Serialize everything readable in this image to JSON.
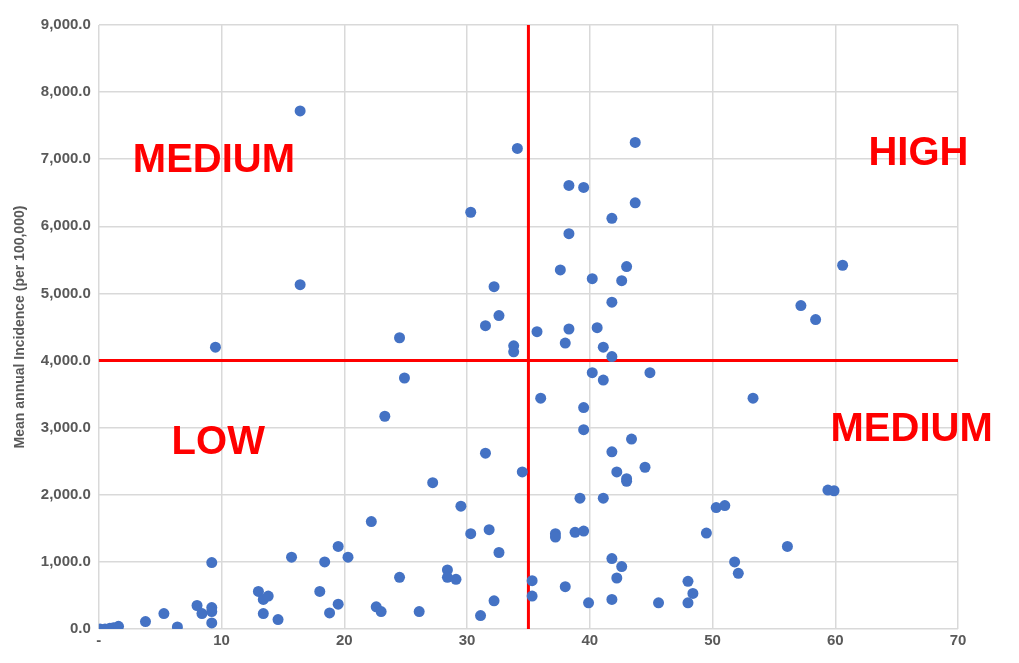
{
  "chart_data": {
    "type": "scatter",
    "ylabel": "Mean annual Incidence (per 100,000)",
    "xlim": [
      0,
      70
    ],
    "xticks": [
      {
        "value": 0,
        "label": "-"
      },
      10,
      20,
      30,
      40,
      50,
      60,
      70
    ],
    "ylim": [
      0,
      9000
    ],
    "yticks": [
      {
        "value": 0,
        "label": "0.0"
      },
      {
        "value": 1000,
        "label": "1,000.0"
      },
      {
        "value": 2000,
        "label": "2,000.0"
      },
      {
        "value": 3000,
        "label": "3,000.0"
      },
      {
        "value": 4000,
        "label": "4,000.0"
      },
      {
        "value": 5000,
        "label": "5,000.0"
      },
      {
        "value": 6000,
        "label": "6,000.0"
      },
      {
        "value": 7000,
        "label": "7,000.0"
      },
      {
        "value": 8000,
        "label": "8,000.0"
      },
      {
        "value": 9000,
        "label": "9,000.0"
      }
    ],
    "grid": true,
    "marker": "circle",
    "series": [
      {
        "color": "#4472c4",
        "x": [
          16.4,
          16.4,
          30.3,
          32.2,
          31.5,
          32.6,
          24.5,
          34.1,
          43.7,
          38.3,
          39.5,
          43.7,
          41.8,
          38.3,
          37.6,
          40.2,
          43.0,
          42.6,
          41.8,
          60.6,
          57.2,
          58.4,
          35.7,
          38.3,
          40.6,
          33.8,
          33.8,
          38.0,
          41.1,
          41.8,
          40.2,
          41.1,
          44.9,
          36.0,
          53.3,
          39.5,
          39.5,
          43.4,
          31.5,
          41.8,
          34.5,
          42.2,
          44.5,
          43.0,
          43.0,
          39.2,
          41.1,
          59.4,
          59.9,
          50.3,
          51.0,
          31.8,
          37.2,
          37.2,
          38.8,
          39.5,
          49.5,
          56.1,
          32.6,
          41.8,
          42.6,
          51.8,
          52.1,
          35.3,
          42.2,
          48.0,
          38.0,
          48.4,
          35.3,
          32.2,
          39.9,
          41.8,
          45.6,
          48.0,
          31.1,
          9.5,
          24.9,
          23.3,
          27.2,
          29.5,
          22.2,
          30.3,
          15.7,
          18.4,
          19.5,
          20.3,
          9.2,
          24.5,
          28.4,
          28.4,
          29.1,
          26.1,
          22.6,
          23.0,
          19.5,
          18.8,
          18.0,
          13.0,
          13.4,
          13.8,
          13.4,
          14.6,
          8.0,
          8.4,
          9.2,
          9.2,
          9.2,
          5.3,
          3.8,
          6.4,
          0.1,
          0.5,
          0.9,
          1.2,
          1.6
        ],
        "values": [
          7720,
          5130,
          6210,
          5100,
          4520,
          4670,
          4340,
          7160,
          7250,
          6610,
          6580,
          6350,
          6120,
          5890,
          5350,
          5220,
          5400,
          5190,
          4870,
          5420,
          4820,
          4610,
          4430,
          4470,
          4490,
          4220,
          4130,
          4260,
          4200,
          4060,
          3820,
          3710,
          3820,
          3440,
          3440,
          3300,
          2970,
          2830,
          2620,
          2640,
          2340,
          2340,
          2410,
          2240,
          2200,
          1950,
          1950,
          2070,
          2060,
          1810,
          1840,
          1480,
          1420,
          1370,
          1440,
          1460,
          1430,
          1230,
          1140,
          1050,
          930,
          1000,
          830,
          720,
          760,
          710,
          630,
          530,
          490,
          420,
          390,
          440,
          390,
          390,
          200,
          4200,
          3740,
          3170,
          2180,
          1830,
          1600,
          1420,
          1070,
          1000,
          1230,
          1070,
          990,
          770,
          880,
          770,
          740,
          260,
          330,
          260,
          370,
          240,
          560,
          560,
          440,
          490,
          230,
          140,
          350,
          230,
          320,
          260,
          90,
          230,
          110,
          30,
          0,
          0,
          10,
          20,
          40
        ]
      }
    ],
    "ref_lines": [
      {
        "axis": "y",
        "value": 4000,
        "color": "#ff0000"
      },
      {
        "axis": "x",
        "value": 35,
        "color": "#ff0000"
      }
    ],
    "annotations": [
      "MEDIUM",
      "HIGH",
      "LOW",
      "MEDIUM"
    ]
  }
}
